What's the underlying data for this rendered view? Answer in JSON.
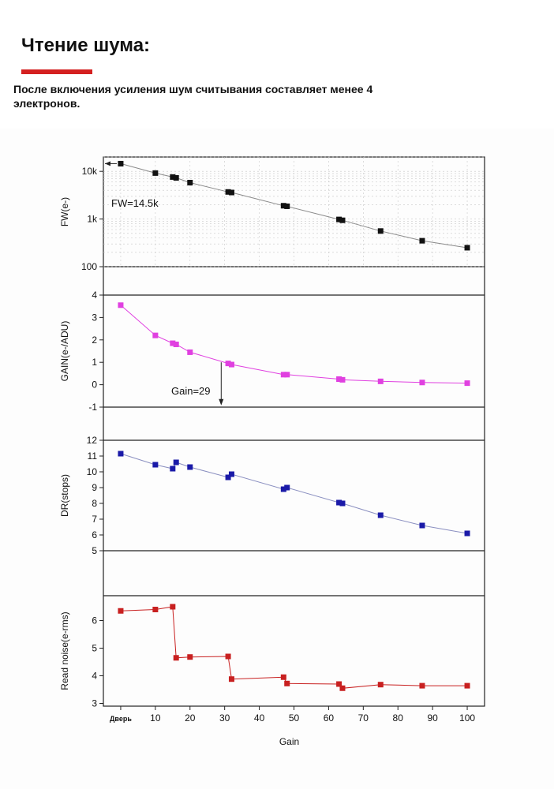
{
  "header": {
    "title": "Чтение шума:",
    "subtitle": "После включения усиления шум считывания составляет менее 4 электронов."
  },
  "colors": {
    "accent": "#d42020",
    "fw": "#111111",
    "gain": "#e040e0",
    "dr": "#1a1aa8",
    "rn": "#c82020",
    "line": "#8a8a8a"
  },
  "chart_data": [
    {
      "type": "scatter",
      "panel": "fw",
      "ylabel": "FW(e-)",
      "yscale": "log",
      "ylim": [
        100,
        20000
      ],
      "yticks": [
        100,
        1000,
        10000
      ],
      "yticklabels": [
        "100",
        "1k",
        "10k"
      ],
      "xlim": [
        -5,
        105
      ],
      "grid": true,
      "annotation": "FW=14.5k",
      "x": [
        0,
        10,
        15,
        16,
        20,
        31,
        32,
        47,
        48,
        63,
        64,
        75,
        87,
        100
      ],
      "y": [
        14500,
        9200,
        7600,
        7300,
        5800,
        3700,
        3600,
        1900,
        1850,
        980,
        940,
        560,
        350,
        250
      ]
    },
    {
      "type": "scatter",
      "panel": "gain",
      "ylabel": "GAIN(e-/ADU)",
      "ylim": [
        -1,
        4
      ],
      "yticks": [
        -1,
        0,
        1,
        2,
        3,
        4
      ],
      "yticklabels": [
        "-1",
        "0",
        "1",
        "2",
        "3",
        "4"
      ],
      "xlim": [
        -5,
        105
      ],
      "annotation": "Gain=29",
      "x": [
        0,
        10,
        15,
        16,
        20,
        31,
        32,
        47,
        48,
        63,
        64,
        75,
        87,
        100
      ],
      "y": [
        3.55,
        2.2,
        1.85,
        1.8,
        1.45,
        0.95,
        0.9,
        0.45,
        0.45,
        0.25,
        0.22,
        0.15,
        0.1,
        0.07
      ]
    },
    {
      "type": "scatter",
      "panel": "dr",
      "ylabel": "DR(stops)",
      "ylim": [
        5,
        12
      ],
      "yticks": [
        5,
        6,
        7,
        8,
        9,
        10,
        11,
        12
      ],
      "yticklabels": [
        "5",
        "6",
        "7",
        "8",
        "9",
        "10",
        "11",
        "12"
      ],
      "xlim": [
        -5,
        105
      ],
      "x": [
        0,
        10,
        15,
        16,
        20,
        31,
        32,
        47,
        48,
        63,
        64,
        75,
        87,
        100
      ],
      "y": [
        11.15,
        10.45,
        10.2,
        10.6,
        10.3,
        9.65,
        9.85,
        8.9,
        9.0,
        8.05,
        8.0,
        7.25,
        6.6,
        6.1
      ]
    },
    {
      "type": "scatter",
      "panel": "rn",
      "ylabel": "Read noise(e-rms)",
      "ylim": [
        2.9,
        6.9
      ],
      "yticks": [
        3,
        4,
        5,
        6
      ],
      "yticklabels": [
        "3",
        "4",
        "5",
        "6"
      ],
      "xlim": [
        -5,
        105
      ],
      "xlabel": "Gain",
      "xticks": [
        0,
        10,
        20,
        30,
        40,
        50,
        60,
        70,
        80,
        90,
        100
      ],
      "xticklabels": [
        "Дверь",
        "10",
        "20",
        "30",
        "40",
        "50",
        "60",
        "70",
        "80",
        "90",
        "100"
      ],
      "x": [
        0,
        10,
        15,
        16,
        20,
        31,
        32,
        47,
        48,
        63,
        64,
        75,
        87,
        100
      ],
      "y": [
        6.35,
        6.4,
        6.5,
        4.65,
        4.68,
        4.7,
        3.88,
        3.95,
        3.72,
        3.7,
        3.55,
        3.68,
        3.64,
        3.64
      ]
    }
  ]
}
